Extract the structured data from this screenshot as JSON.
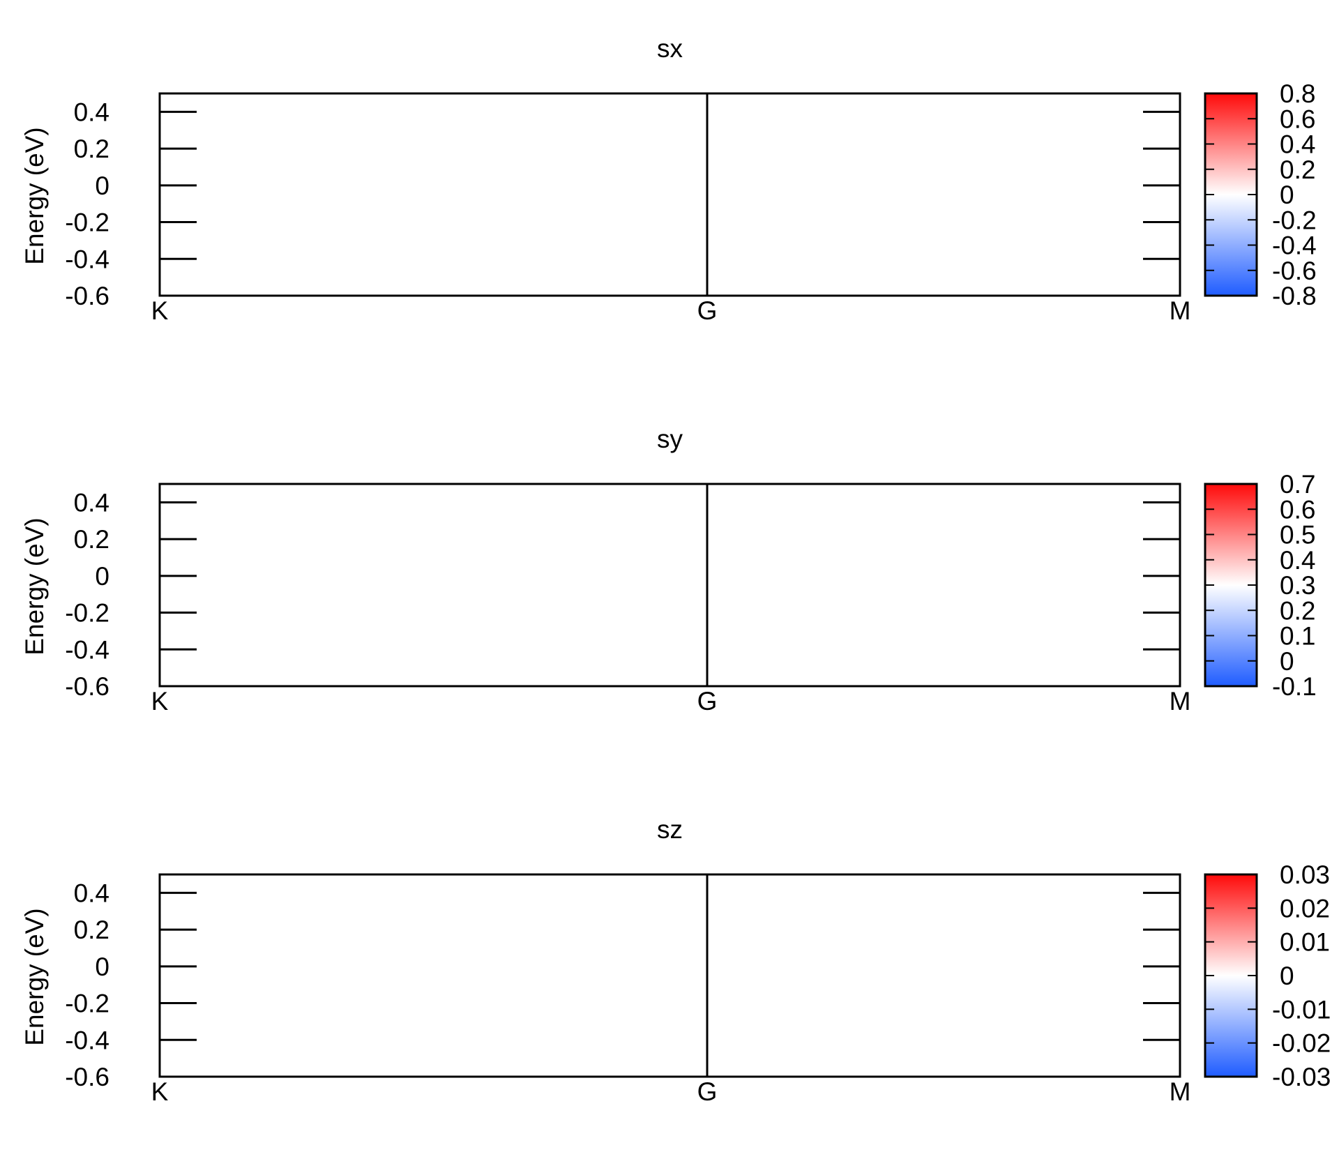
{
  "chart_data": [
    {
      "type": "heatmap",
      "title": "sx",
      "ylabel": "Energy (eV)",
      "xlabel": "",
      "x_tick_labels": [
        "K",
        "G",
        "M"
      ],
      "y_ticks": [
        0.4,
        0.2,
        0,
        -0.2,
        -0.4,
        -0.6
      ],
      "y_tick_labels": [
        "0.4",
        "0.2",
        "0",
        "-0.2",
        "-0.4",
        "-0.6"
      ],
      "ylim": [
        -0.6,
        0.5
      ],
      "colorbar": {
        "tick_labels": [
          "0.8",
          "0.6",
          "0.4",
          "0.2",
          "0",
          "-0.2",
          "-0.4",
          "-0.6",
          "-0.8"
        ],
        "range": [
          -0.8,
          0.8
        ],
        "colors": {
          "low": "#1f5cff",
          "mid": "#ffffff",
          "high": "#ff0a0a"
        }
      },
      "series": []
    },
    {
      "type": "heatmap",
      "title": "sy",
      "ylabel": "Energy (eV)",
      "xlabel": "",
      "x_tick_labels": [
        "K",
        "G",
        "M"
      ],
      "y_ticks": [
        0.4,
        0.2,
        0,
        -0.2,
        -0.4,
        -0.6
      ],
      "y_tick_labels": [
        "0.4",
        "0.2",
        "0",
        "-0.2",
        "-0.4",
        "-0.6"
      ],
      "ylim": [
        -0.6,
        0.5
      ],
      "colorbar": {
        "tick_labels": [
          "0.7",
          "0.6",
          "0.5",
          "0.4",
          "0.3",
          "0.2",
          "0.1",
          "0",
          "-0.1"
        ],
        "range": [
          -0.1,
          0.7
        ],
        "colors": {
          "low": "#1f5cff",
          "mid": "#ffffff",
          "high": "#ff0a0a"
        }
      },
      "series": []
    },
    {
      "type": "heatmap",
      "title": "sz",
      "ylabel": "Energy (eV)",
      "xlabel": "",
      "x_tick_labels": [
        "K",
        "G",
        "M"
      ],
      "y_ticks": [
        0.4,
        0.2,
        0,
        -0.2,
        -0.4,
        -0.6
      ],
      "y_tick_labels": [
        "0.4",
        "0.2",
        "0",
        "-0.2",
        "-0.4",
        "-0.6"
      ],
      "ylim": [
        -0.6,
        0.5
      ],
      "colorbar": {
        "tick_labels": [
          "0.03",
          "0.02",
          "0.01",
          "0",
          "-0.01",
          "-0.02",
          "-0.03"
        ],
        "range": [
          -0.03,
          0.03
        ],
        "colors": {
          "low": "#1f5cff",
          "mid": "#ffffff",
          "high": "#ff0a0a"
        }
      },
      "series": []
    }
  ]
}
